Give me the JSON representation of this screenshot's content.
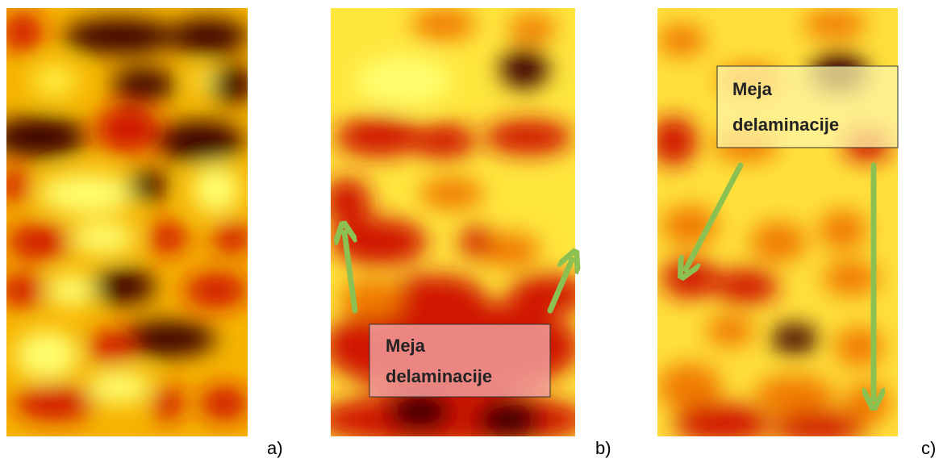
{
  "panels": [
    {
      "label": "a)"
    },
    {
      "label": "b)",
      "annotation": {
        "lines": [
          "Meja",
          "delaminacije"
        ]
      }
    },
    {
      "label": "c)",
      "annotation": {
        "lines": [
          "Meja",
          "delaminacije"
        ]
      }
    }
  ]
}
